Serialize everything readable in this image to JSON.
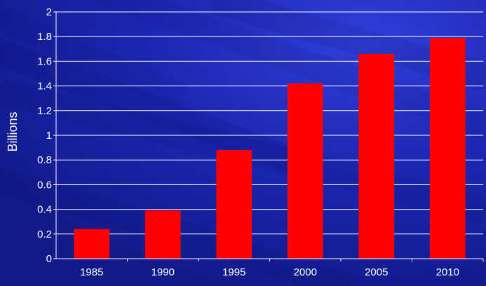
{
  "chart_data": {
    "type": "bar",
    "title": "",
    "xlabel": "",
    "ylabel": "Billions",
    "categories": [
      "1985",
      "1990",
      "1995",
      "2000",
      "2005",
      "2010"
    ],
    "values": [
      0.24,
      0.39,
      0.88,
      1.42,
      1.66,
      1.79
    ],
    "ylim": [
      0,
      2
    ],
    "ytick_labels": [
      "0",
      "0.2",
      "0.4",
      "0.6",
      "0.8",
      "1",
      "1.2",
      "1.4",
      "1.6",
      "1.8",
      "2"
    ],
    "grid": true,
    "legend": "none",
    "colors": {
      "bar": "#ff0000",
      "background": "#1a22a8",
      "gridline": "#ffffff",
      "text": "#ffffff"
    }
  }
}
